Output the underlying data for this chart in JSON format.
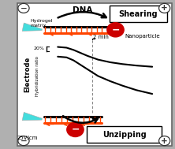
{
  "bg_color": "#b0b0b0",
  "inner_bg": "#ffffff",
  "title_shearing": "Shearing",
  "title_unzipping": "Unzipping",
  "electrode_label": "Electrode",
  "voltage_label": "25V/cm",
  "dna_label": "DNA",
  "nanoparticle_label": "Nanoparticle",
  "hydrogel_label": "Hydrogel\nmatrix",
  "time_label": "2 min",
  "y_label": "20%",
  "hybridization_label": "Hybridization ratio",
  "dna_color": "#ff4400",
  "nanoparticle_color": "#cc0000",
  "arrow_color": "#111111",
  "cyan_color": "#44dddd",
  "border_color": "#444444",
  "curve1": {
    "t": [
      0.33,
      0.38,
      0.42,
      0.46,
      0.5,
      0.56,
      0.63,
      0.7,
      0.78,
      0.87
    ],
    "v": [
      0.685,
      0.68,
      0.665,
      0.645,
      0.625,
      0.6,
      0.582,
      0.57,
      0.56,
      0.552
    ]
  },
  "curve2": {
    "t": [
      0.33,
      0.38,
      0.42,
      0.46,
      0.5,
      0.56,
      0.63,
      0.7,
      0.78,
      0.87
    ],
    "v": [
      0.62,
      0.615,
      0.595,
      0.565,
      0.535,
      0.49,
      0.455,
      0.425,
      0.395,
      0.37
    ]
  }
}
